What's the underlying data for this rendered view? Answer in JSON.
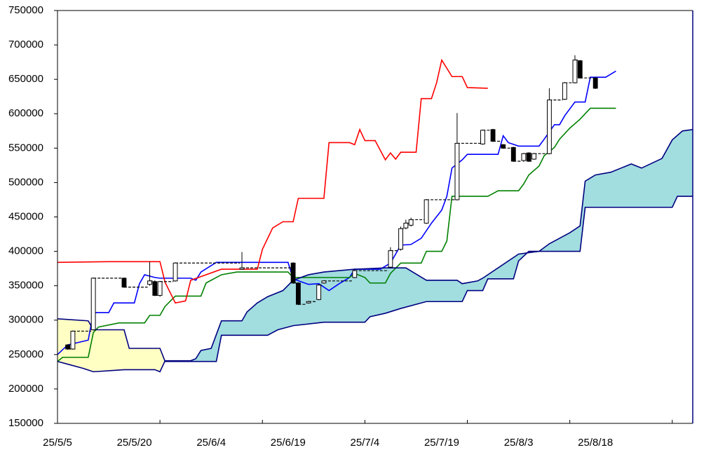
{
  "chart_data": {
    "type": "ichimoku",
    "xlim": [
      0,
      124
    ],
    "ylim": [
      150000,
      750000
    ],
    "yticks": [
      150000,
      200000,
      250000,
      300000,
      350000,
      400000,
      450000,
      500000,
      550000,
      600000,
      650000,
      700000,
      750000
    ],
    "xticks": [
      {
        "value": 0,
        "label": "25/5/5"
      },
      {
        "value": 15,
        "label": "25/5/20"
      },
      {
        "value": 30,
        "label": "25/6/4"
      },
      {
        "value": 45,
        "label": "25/6/19"
      },
      {
        "value": 60,
        "label": "25/7/4"
      },
      {
        "value": 75,
        "label": "25/7/19"
      },
      {
        "value": 90,
        "label": "25/8/3"
      },
      {
        "value": 105,
        "label": "25/8/18"
      }
    ],
    "xtick_marks": [
      20,
      40,
      60,
      80,
      100,
      120
    ],
    "candles": {
      "up_color": "#ffffff",
      "down_color": "#000000",
      "x": [
        2,
        3,
        7,
        13,
        18,
        19,
        20,
        23,
        36,
        46,
        47,
        49,
        51,
        52,
        58,
        65,
        67,
        68,
        69,
        72,
        78,
        83,
        85,
        87,
        89,
        91,
        92,
        93,
        96,
        99,
        101,
        102,
        105
      ],
      "open": [
        264000,
        258000,
        286000,
        361000,
        352000,
        356000,
        336000,
        357000,
        374000,
        383000,
        354000,
        325000,
        330000,
        354000,
        362000,
        377000,
        403000,
        434000,
        438000,
        441000,
        475000,
        556000,
        577000,
        555000,
        551000,
        532000,
        543000,
        534000,
        542000,
        621000,
        645000,
        677000,
        652000
      ],
      "high": [
        265000,
        285000,
        362000,
        362000,
        385000,
        358000,
        357000,
        384000,
        399000,
        384000,
        355000,
        328000,
        352000,
        358000,
        373000,
        406000,
        436000,
        446000,
        449000,
        476000,
        601000,
        577000,
        578000,
        556000,
        552000,
        543000,
        544000,
        543000,
        637000,
        646000,
        685000,
        678000,
        653000
      ],
      "low": [
        257000,
        257000,
        285000,
        347000,
        350000,
        335000,
        334000,
        356000,
        373000,
        353000,
        322000,
        324000,
        329000,
        353000,
        361000,
        376000,
        401000,
        432000,
        436000,
        440000,
        474000,
        555000,
        559000,
        549000,
        530000,
        530000,
        530000,
        533000,
        541000,
        620000,
        644000,
        651000,
        636000
      ],
      "close": [
        258000,
        284000,
        361000,
        348000,
        357000,
        336000,
        356000,
        383000,
        376000,
        354000,
        323000,
        327000,
        351000,
        357000,
        372000,
        401000,
        433000,
        441000,
        446000,
        475000,
        557000,
        576000,
        560000,
        550000,
        531000,
        542000,
        531000,
        542000,
        620000,
        645000,
        678000,
        652000,
        637000
      ]
    },
    "series": [
      {
        "role": "tenkan",
        "color": "#0000ff",
        "x": [
          0,
          2,
          6,
          7,
          10,
          11,
          15,
          16,
          17,
          19,
          20,
          26,
          27,
          28,
          31,
          45,
          46,
          49,
          51,
          53,
          55,
          57,
          58,
          63,
          65,
          67,
          69,
          71,
          73,
          75,
          76,
          77,
          79,
          80,
          86,
          87,
          88,
          90,
          94,
          95,
          97,
          98,
          99,
          101,
          103,
          104,
          107,
          109
        ],
        "values": [
          250000,
          264000,
          271000,
          311000,
          311000,
          325000,
          325000,
          353000,
          366000,
          362000,
          361000,
          361000,
          358000,
          370000,
          384000,
          384000,
          360000,
          352000,
          353000,
          343000,
          353000,
          362000,
          374000,
          374000,
          383000,
          409000,
          410000,
          419000,
          441000,
          460000,
          480000,
          521000,
          533000,
          541000,
          541000,
          568000,
          558000,
          553000,
          553000,
          563000,
          584000,
          584000,
          597000,
          617000,
          617000,
          653000,
          653000,
          662000
        ]
      },
      {
        "role": "kijun",
        "color": "#008000",
        "x": [
          0,
          1,
          6,
          7,
          8,
          12,
          17,
          18,
          20,
          21,
          23,
          28,
          29,
          32,
          35,
          45,
          46,
          57,
          58,
          60,
          61,
          64,
          65,
          67,
          71,
          72,
          75,
          76,
          77,
          84,
          86,
          90,
          91,
          92,
          94,
          95,
          97,
          98,
          100,
          102,
          104,
          109
        ],
        "values": [
          240000,
          246000,
          246000,
          282000,
          290000,
          296000,
          296000,
          307000,
          307000,
          320000,
          335000,
          335000,
          354000,
          366000,
          370000,
          370000,
          362000,
          362000,
          368000,
          362000,
          354000,
          354000,
          368000,
          383000,
          383000,
          400000,
          400000,
          415000,
          480000,
          480000,
          488000,
          488000,
          498000,
          511000,
          524000,
          539000,
          551000,
          563000,
          579000,
          592000,
          608000,
          608000
        ]
      },
      {
        "role": "chikou",
        "color": "#ff0000",
        "x": [
          0,
          10,
          20,
          21,
          23,
          25,
          26,
          32,
          39,
          40,
          42,
          44,
          46,
          47,
          52,
          53,
          57,
          58,
          59,
          60,
          62,
          64,
          65,
          66,
          67,
          70,
          71,
          73,
          74,
          75,
          77,
          79,
          80,
          84
        ],
        "values": [
          384000,
          385000,
          385000,
          355000,
          325000,
          328000,
          358000,
          374000,
          374000,
          403000,
          434000,
          443000,
          443000,
          477000,
          477000,
          558000,
          558000,
          555000,
          577000,
          561000,
          561000,
          533000,
          543000,
          534000,
          544000,
          544000,
          622000,
          622000,
          645000,
          678000,
          654000,
          654000,
          638000,
          637000
        ]
      },
      {
        "role": "senkou_a",
        "color": "#000080",
        "x": [
          0,
          2,
          5,
          7,
          11,
          13,
          19,
          20,
          21,
          26,
          27,
          28,
          30,
          32,
          36,
          37,
          39,
          41,
          44,
          46,
          49,
          52,
          58,
          64,
          68,
          72,
          78,
          79,
          82,
          83,
          90,
          94,
          96,
          98,
          100,
          102,
          103,
          105,
          108,
          112,
          114,
          116,
          118,
          120,
          122,
          124
        ],
        "values": [
          240000,
          236000,
          230000,
          225000,
          227000,
          228000,
          228000,
          225000,
          241000,
          241000,
          244000,
          256000,
          259000,
          299000,
          299000,
          312000,
          325000,
          334000,
          343000,
          358000,
          366000,
          370000,
          374000,
          376000,
          376000,
          358000,
          358000,
          353000,
          357000,
          361000,
          396000,
          400000,
          411000,
          419000,
          427000,
          437000,
          502000,
          511000,
          515000,
          527000,
          521000,
          528000,
          535000,
          562000,
          575000,
          577000
        ]
      },
      {
        "role": "senkou_b",
        "color": "#000080",
        "x": [
          0,
          6,
          7,
          13,
          14,
          20,
          21,
          31,
          32,
          41,
          43,
          46,
          52,
          60,
          61,
          64,
          67,
          72,
          79,
          80,
          83,
          84,
          89,
          90,
          92,
          102,
          103,
          120,
          121,
          124
        ],
        "values": [
          302000,
          299000,
          286000,
          286000,
          259000,
          259000,
          240000,
          240000,
          278000,
          278000,
          286000,
          292000,
          297000,
          297000,
          305000,
          310000,
          317000,
          327000,
          327000,
          343000,
          343000,
          360000,
          360000,
          386000,
          400000,
          400000,
          464000,
          464000,
          480000,
          480000
        ]
      }
    ],
    "cloud_colors": {
      "up": "#a2dde0",
      "down": "#ffffc4"
    }
  }
}
